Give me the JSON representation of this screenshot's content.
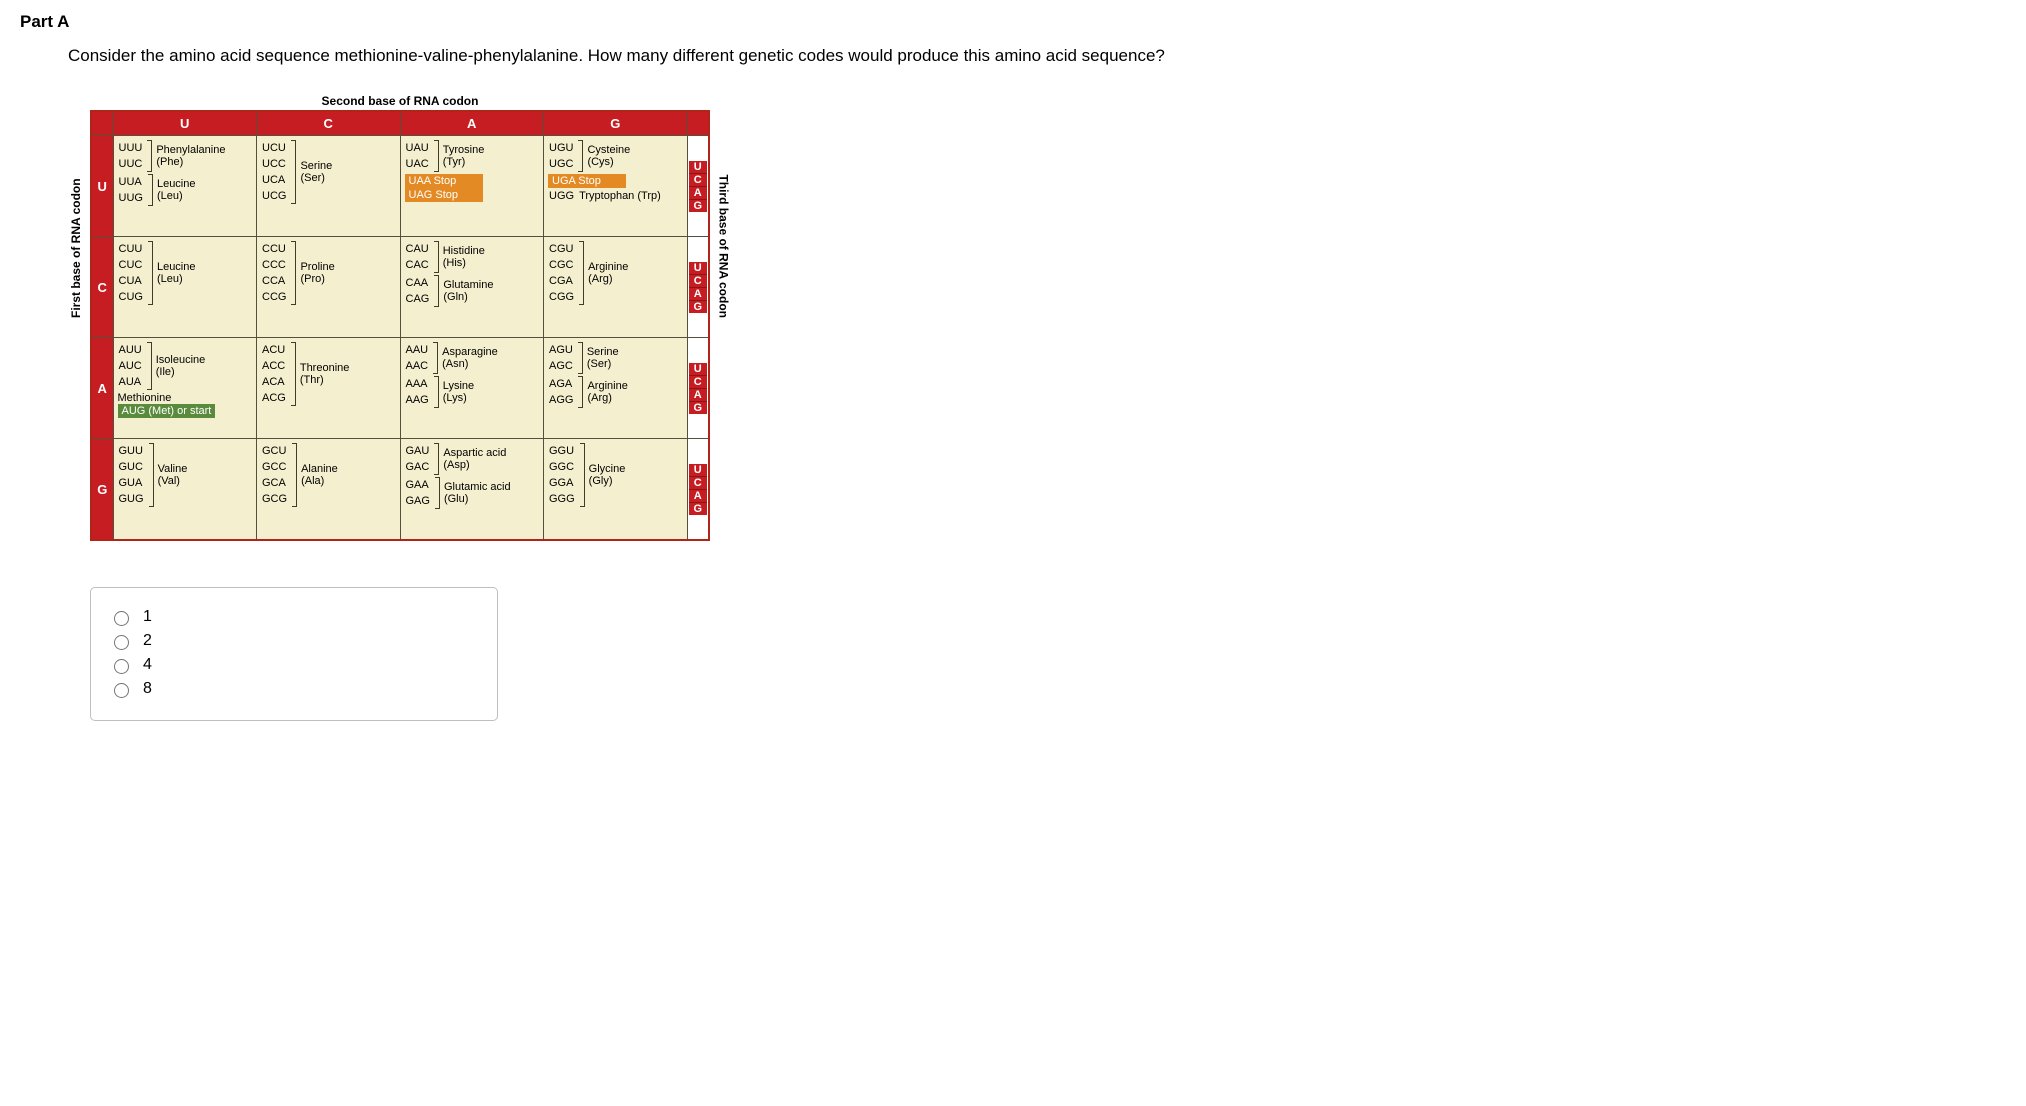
{
  "part_label": "Part A",
  "question": "Consider the amino acid sequence methionine-valine-phenylalanine. How many different genetic codes would produce this amino acid sequence?",
  "captions": {
    "top": "Second base of RNA codon",
    "left": "First base of RNA codon",
    "right": "Third base of RNA codon"
  },
  "col_heads": [
    "U",
    "C",
    "A",
    "G"
  ],
  "row_heads": [
    "U",
    "C",
    "A",
    "G"
  ],
  "third_bases": [
    "U",
    "C",
    "A",
    "G"
  ],
  "cells": {
    "U": {
      "U": [
        {
          "codons": [
            "UUU",
            "UUC"
          ],
          "aa": "Phenylalanine\n(Phe)"
        },
        {
          "codons": [
            "UUA",
            "UUG"
          ],
          "aa": "Leucine\n(Leu)"
        }
      ],
      "C": [
        {
          "codons": [
            "UCU",
            "UCC",
            "UCA",
            "UCG"
          ],
          "aa": "Serine\n(Ser)"
        }
      ],
      "A": [
        {
          "codons": [
            "UAU",
            "UAC"
          ],
          "aa": "Tyrosine\n(Tyr)"
        },
        {
          "stop": "UAA   Stop"
        },
        {
          "stop": "UAG   Stop"
        }
      ],
      "G": [
        {
          "codons": [
            "UGU",
            "UGC"
          ],
          "aa": "Cysteine\n(Cys)"
        },
        {
          "stop": "UGA   Stop"
        },
        {
          "codons": [
            "UGG"
          ],
          "aa": "Tryptophan (Trp)"
        }
      ]
    },
    "C": {
      "U": [
        {
          "codons": [
            "CUU",
            "CUC",
            "CUA",
            "CUG"
          ],
          "aa": "Leucine\n(Leu)"
        }
      ],
      "C": [
        {
          "codons": [
            "CCU",
            "CCC",
            "CCA",
            "CCG"
          ],
          "aa": "Proline\n(Pro)"
        }
      ],
      "A": [
        {
          "codons": [
            "CAU",
            "CAC"
          ],
          "aa": "Histidine\n(His)"
        },
        {
          "codons": [
            "CAA",
            "CAG"
          ],
          "aa": "Glutamine\n(Gln)"
        }
      ],
      "G": [
        {
          "codons": [
            "CGU",
            "CGC",
            "CGA",
            "CGG"
          ],
          "aa": "Arginine\n(Arg)"
        }
      ]
    },
    "A": {
      "U": [
        {
          "codons": [
            "AUU",
            "AUC",
            "AUA"
          ],
          "aa": "Isoleucine\n(Ile)"
        },
        {
          "start": "AUG   (Met) or start",
          "pre": "Methionine"
        }
      ],
      "C": [
        {
          "codons": [
            "ACU",
            "ACC",
            "ACA",
            "ACG"
          ],
          "aa": "Threonine\n(Thr)"
        }
      ],
      "A": [
        {
          "codons": [
            "AAU",
            "AAC"
          ],
          "aa": "Asparagine\n(Asn)"
        },
        {
          "codons": [
            "AAA",
            "AAG"
          ],
          "aa": "Lysine\n(Lys)"
        }
      ],
      "G": [
        {
          "codons": [
            "AGU",
            "AGC"
          ],
          "aa": "Serine\n(Ser)"
        },
        {
          "codons": [
            "AGA",
            "AGG"
          ],
          "aa": "Arginine\n(Arg)"
        }
      ]
    },
    "G": {
      "U": [
        {
          "codons": [
            "GUU",
            "GUC",
            "GUA",
            "GUG"
          ],
          "aa": "Valine\n(Val)"
        }
      ],
      "C": [
        {
          "codons": [
            "GCU",
            "GCC",
            "GCA",
            "GCG"
          ],
          "aa": "Alanine\n(Ala)"
        }
      ],
      "A": [
        {
          "codons": [
            "GAU",
            "GAC"
          ],
          "aa": "Aspartic acid\n(Asp)"
        },
        {
          "codons": [
            "GAA",
            "GAG"
          ],
          "aa": "Glutamic acid\n(Glu)"
        }
      ],
      "G": [
        {
          "codons": [
            "GGU",
            "GGC",
            "GGA",
            "GGG"
          ],
          "aa": "Glycine\n(Gly)"
        }
      ]
    }
  },
  "options": [
    "1",
    "2",
    "4",
    "8"
  ],
  "colors": {
    "header_bg": "#c51d21",
    "cell_bg": "#f4efcf",
    "stop_bg": "#e38a24",
    "start_bg": "#5a8a3c",
    "border": "#55503c"
  }
}
